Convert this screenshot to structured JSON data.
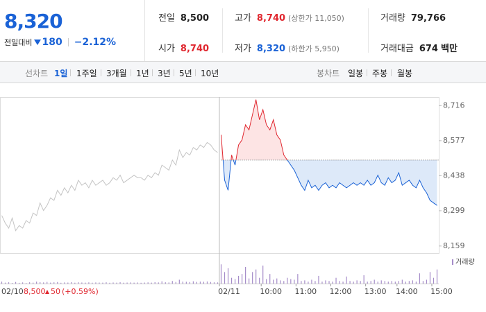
{
  "header": {
    "price": "8,320",
    "change_label": "전일대비",
    "change": "180",
    "change_pct": "−2.12%"
  },
  "info": [
    {
      "label": "전일",
      "value": "8,500"
    },
    {
      "label": "고가",
      "value": "8,740",
      "note": "(상한가 11,050)"
    },
    {
      "label": "거래량",
      "value": "79,766"
    },
    {
      "label": "시가",
      "value": "8,740"
    },
    {
      "label": "저가",
      "value": "8,320",
      "note": "(하한가 5,950)"
    },
    {
      "label": "거래대금",
      "value": "674",
      "unit": "백만"
    }
  ],
  "tabs": {
    "line_label": "선차트",
    "line": [
      "1일",
      "1주일",
      "3개월",
      "1년",
      "3년",
      "5년",
      "10년"
    ],
    "candle_label": "봉차트",
    "candle": [
      "일봉",
      "주봉",
      "월봉"
    ]
  },
  "chart_data": {
    "type": "line",
    "categories": [
      null,
      null,
      null,
      null,
      null,
      null,
      null,
      null,
      null,
      null,
      null,
      null,
      null,
      null,
      null,
      null,
      null,
      null,
      null,
      null,
      null,
      null,
      null,
      null,
      null,
      null,
      null,
      null,
      null,
      null,
      null,
      null,
      null,
      null,
      null,
      null,
      null,
      null,
      null,
      null,
      null,
      null,
      null,
      null,
      null,
      null,
      null,
      null,
      null,
      null,
      null,
      null,
      null,
      null,
      null,
      null,
      null,
      null,
      null,
      null,
      null,
      null,
      null,
      "02/11",
      null,
      null,
      null,
      null,
      null,
      null,
      null,
      null,
      null,
      null,
      null,
      "10:00",
      null,
      null,
      null,
      null,
      null,
      null,
      null,
      null,
      null,
      "11:00",
      null,
      null,
      null,
      null,
      null,
      null,
      null,
      null,
      null,
      "12:00",
      null,
      null,
      null,
      null,
      null,
      null,
      null,
      null,
      null,
      "13:00",
      null,
      null,
      null,
      null,
      null,
      null,
      null,
      null,
      "14:00",
      null,
      null,
      null,
      null,
      null,
      null,
      null,
      null,
      null,
      "15:00",
      null
    ],
    "series": [
      {
        "color": "#c4c4c4",
        "values": [
          8280,
          8250,
          8230,
          8270,
          8220,
          8240,
          8230,
          8260,
          8250,
          8290,
          8280,
          8330,
          8300,
          8320,
          8350,
          8340,
          8380,
          8360,
          8390,
          8370,
          8400,
          8380,
          8420,
          8400,
          8410,
          8390,
          8420,
          8400,
          8410,
          8420,
          8400,
          8410,
          8430,
          8420,
          8440,
          8410,
          8420,
          8430,
          8440,
          8430,
          8430,
          8420,
          8440,
          8430,
          8450,
          8440,
          8480,
          8470,
          8460,
          8500,
          8480,
          8540,
          8510,
          8530,
          8520,
          8550,
          8540,
          8560,
          8550,
          8570,
          8560,
          8540,
          8530,
          null,
          null,
          null,
          null,
          null,
          null,
          null,
          null,
          null,
          null,
          null,
          null,
          null,
          null,
          null,
          null,
          null,
          null,
          null,
          null,
          null,
          null,
          null,
          null,
          null,
          null,
          null,
          null,
          null,
          null,
          null,
          null,
          null,
          null,
          null,
          null,
          null,
          null,
          null,
          null,
          null,
          null,
          null,
          null,
          null,
          null,
          null,
          null,
          null,
          null,
          null,
          null,
          null,
          null,
          null,
          null,
          null,
          null,
          null,
          null,
          null,
          null,
          null
        ]
      },
      {
        "color": "#1a62d6",
        "color_up": "#e0272f",
        "values": [
          null,
          null,
          null,
          null,
          null,
          null,
          null,
          null,
          null,
          null,
          null,
          null,
          null,
          null,
          null,
          null,
          null,
          null,
          null,
          null,
          null,
          null,
          null,
          null,
          null,
          null,
          null,
          null,
          null,
          null,
          null,
          null,
          null,
          null,
          null,
          null,
          null,
          null,
          null,
          null,
          null,
          null,
          null,
          null,
          null,
          null,
          null,
          null,
          null,
          null,
          null,
          null,
          null,
          null,
          null,
          null,
          null,
          null,
          null,
          null,
          null,
          null,
          null,
          8600,
          8420,
          8380,
          8520,
          8480,
          8560,
          8580,
          8640,
          8620,
          8680,
          8740,
          8660,
          8700,
          8640,
          8620,
          8660,
          8600,
          8580,
          8520,
          8500,
          8480,
          8460,
          8430,
          8400,
          8380,
          8420,
          8390,
          8400,
          8380,
          8400,
          8410,
          8390,
          8400,
          8390,
          8410,
          8400,
          8390,
          8400,
          8410,
          8400,
          8410,
          8400,
          8420,
          8400,
          8410,
          8440,
          8410,
          8400,
          8430,
          8410,
          8420,
          8450,
          8400,
          8410,
          8420,
          8400,
          8390,
          8420,
          8390,
          8370,
          8340,
          8330,
          8320
        ]
      }
    ],
    "baseline": 8500,
    "ylim": [
      8131,
      8750
    ],
    "yticks": [
      {
        "value": 8716,
        "label": "8,716"
      },
      {
        "value": 8577,
        "label": "8,577"
      },
      {
        "value": 8438,
        "label": "8,438"
      },
      {
        "value": 8299,
        "label": "8,299"
      },
      {
        "value": 8159,
        "label": "8,159"
      }
    ],
    "grid": false,
    "volume_label": "거래량",
    "volume_color": "#a58cc9",
    "volume_ylim": [
      0,
      4000
    ],
    "volume": [
      300,
      150,
      200,
      100,
      250,
      120,
      180,
      90,
      200,
      150,
      300,
      220,
      180,
      260,
      150,
      200,
      240,
      130,
      180,
      160,
      220,
      140,
      200,
      170,
      150,
      190,
      140,
      180,
      160,
      150,
      200,
      130,
      170,
      150,
      210,
      140,
      160,
      180,
      150,
      170,
      130,
      160,
      190,
      150,
      220,
      180,
      350,
      200,
      180,
      400,
      250,
      600,
      300,
      280,
      240,
      350,
      260,
      300,
      280,
      320,
      250,
      200,
      180,
      3000,
      1800,
      2400,
      900,
      700,
      1200,
      1500,
      2600,
      800,
      1800,
      2200,
      900,
      2800,
      700,
      1500,
      600,
      800,
      500,
      400,
      900,
      700,
      600,
      1500,
      400,
      500,
      300,
      600,
      400,
      1200,
      300,
      500,
      400,
      300,
      900,
      400,
      300,
      1100,
      400,
      300,
      500,
      400,
      1300,
      300,
      400,
      600,
      300,
      500,
      400,
      300,
      400,
      300,
      400,
      600,
      300,
      400,
      500,
      300,
      1600,
      400,
      600,
      1800,
      900,
      2200
    ],
    "summary": {
      "date": "02/10",
      "price": "8,500",
      "change": "50",
      "change_pct": "(+0.59%)"
    }
  }
}
